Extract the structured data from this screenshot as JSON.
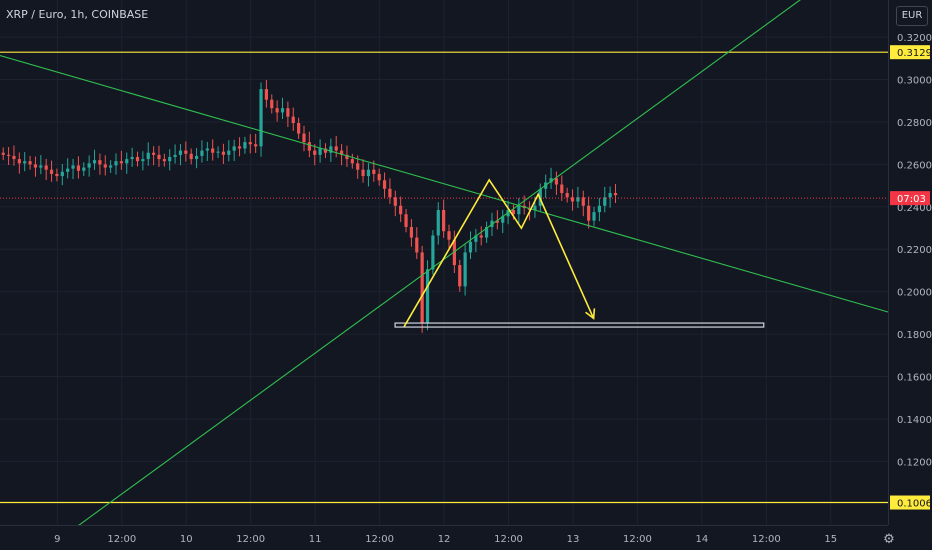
{
  "header": {
    "title": "XRP / Euro, 1h, COINBASE",
    "unit": "EUR"
  },
  "chart_data": {
    "type": "candlestick",
    "symbol": "XRP / Euro",
    "interval": "1h",
    "exchange": "COINBASE",
    "currency": "EUR",
    "ylim": [
      0.09,
      0.3375
    ],
    "y_ticks": [
      "0.3200",
      "0.3000",
      "0.2800",
      "0.2600",
      "0.2400",
      "0.2200",
      "0.2000",
      "0.1800",
      "0.1600",
      "0.1400",
      "0.1200"
    ],
    "x_ticks": [
      {
        "label": "9",
        "t": 9.0
      },
      {
        "label": "12:00",
        "t": 9.5
      },
      {
        "label": "10",
        "t": 10.0
      },
      {
        "label": "12:00",
        "t": 10.5
      },
      {
        "label": "11",
        "t": 11.0
      },
      {
        "label": "12:00",
        "t": 11.5
      },
      {
        "label": "12",
        "t": 12.0
      },
      {
        "label": "12:00",
        "t": 12.5
      },
      {
        "label": "13",
        "t": 13.0
      },
      {
        "label": "12:00",
        "t": 13.5
      },
      {
        "label": "14",
        "t": 14.0
      },
      {
        "label": "12:00",
        "t": 14.5
      },
      {
        "label": "15",
        "t": 15.0
      }
    ],
    "candles_hourly_close": [
      0.2645,
      0.264,
      0.2625,
      0.2605,
      0.2615,
      0.26,
      0.2585,
      0.2595,
      0.2575,
      0.2555,
      0.2545,
      0.2565,
      0.258,
      0.2595,
      0.257,
      0.2585,
      0.2605,
      0.262,
      0.26,
      0.2585,
      0.2595,
      0.2615,
      0.2605,
      0.2625,
      0.2635,
      0.2615,
      0.2625,
      0.2655,
      0.2645,
      0.2625,
      0.2615,
      0.2635,
      0.2645,
      0.2665,
      0.265,
      0.2625,
      0.264,
      0.2665,
      0.2675,
      0.2655,
      0.266,
      0.2645,
      0.2665,
      0.2685,
      0.2675,
      0.2705,
      0.2695,
      0.2685,
      0.2955,
      0.2905,
      0.2865,
      0.2845,
      0.2865,
      0.2825,
      0.2795,
      0.2745,
      0.2705,
      0.2665,
      0.2645,
      0.2675,
      0.2655,
      0.2685,
      0.2665,
      0.2645,
      0.2625,
      0.2605,
      0.2575,
      0.2545,
      0.2575,
      0.2555,
      0.2525,
      0.2485,
      0.2445,
      0.2405,
      0.2365,
      0.2305,
      0.2255,
      0.2185,
      0.1855,
      0.2105,
      0.2265,
      0.2385,
      0.2285,
      0.2245,
      0.2125,
      0.2025,
      0.2185,
      0.2235,
      0.2265,
      0.2255,
      0.2305,
      0.2335,
      0.2325,
      0.2355,
      0.2385,
      0.2365,
      0.2405,
      0.2395,
      0.2385,
      0.2405,
      0.2485,
      0.2515,
      0.2535,
      0.2505,
      0.2465,
      0.2445,
      0.2425,
      0.2445,
      0.2405,
      0.2335,
      0.2375,
      0.2405,
      0.2445,
      0.2465,
      0.2455
    ],
    "horizontal_levels": [
      {
        "price": 0.3129,
        "label": "0.3129",
        "color": "#ffeb3b"
      },
      {
        "price": 0.1006,
        "label": "0.1006",
        "color": "#ffeb3b"
      }
    ],
    "current_price": {
      "price": 0.2441,
      "label": "07:03",
      "color": "#f23645"
    },
    "trend_lines": [
      {
        "t1": 8.555,
        "p1": 0.3113,
        "t2": 15.444,
        "p2": 0.1904,
        "color": "#2fbf4f"
      },
      {
        "t1": 9.083,
        "p1": 0.0862,
        "t2": 14.944,
        "p2": 0.3456,
        "color": "#2fbf4f"
      }
    ],
    "projection_path": {
      "color": "#ffeb3b",
      "points": [
        [
          11.69,
          0.1835
        ],
        [
          12.35,
          0.2527
        ],
        [
          12.6,
          0.2299
        ],
        [
          12.73,
          0.2459
        ],
        [
          13.16,
          0.1874
        ]
      ]
    },
    "support_box": {
      "t1": 11.62,
      "t2": 14.48,
      "p1": 0.1837,
      "p2": 0.1852
    }
  }
}
